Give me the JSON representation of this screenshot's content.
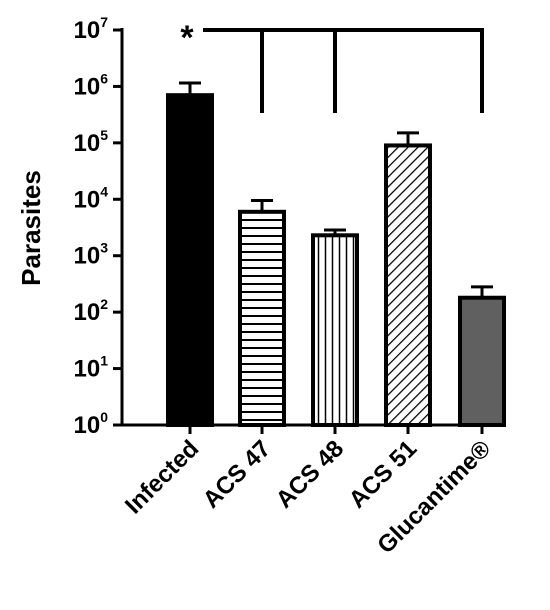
{
  "chart_data": {
    "type": "bar",
    "ylabel": "Parasites",
    "xlabel": "",
    "yscale": "log",
    "ylim": [
      1,
      10000000
    ],
    "y_ticks": [
      {
        "base": "10",
        "exp": "0",
        "value": 1
      },
      {
        "base": "10",
        "exp": "1",
        "value": 10
      },
      {
        "base": "10",
        "exp": "2",
        "value": 100
      },
      {
        "base": "10",
        "exp": "3",
        "value": 1000
      },
      {
        "base": "10",
        "exp": "4",
        "value": 10000
      },
      {
        "base": "10",
        "exp": "5",
        "value": 100000
      },
      {
        "base": "10",
        "exp": "6",
        "value": 1000000
      },
      {
        "base": "10",
        "exp": "7",
        "value": 10000000
      }
    ],
    "categories": [
      "Infected",
      "ACS 47",
      "ACS 48",
      "ACS 51",
      "Glucantime®"
    ],
    "values": [
      700000,
      6000,
      2300,
      90000,
      180
    ],
    "error_upper": [
      1150000,
      9500,
      2850,
      150000,
      280
    ],
    "fills": [
      "solid-black",
      "horizontal-lines",
      "vertical-lines",
      "diagonal-lines",
      "solid-gray"
    ],
    "colors": {
      "black": "#000000",
      "gray": "#606060",
      "background": "#ffffff"
    },
    "significance": {
      "label": "*",
      "reference": "Infected",
      "compared": [
        "ACS 47",
        "ACS 48",
        "Glucantime®"
      ]
    }
  }
}
